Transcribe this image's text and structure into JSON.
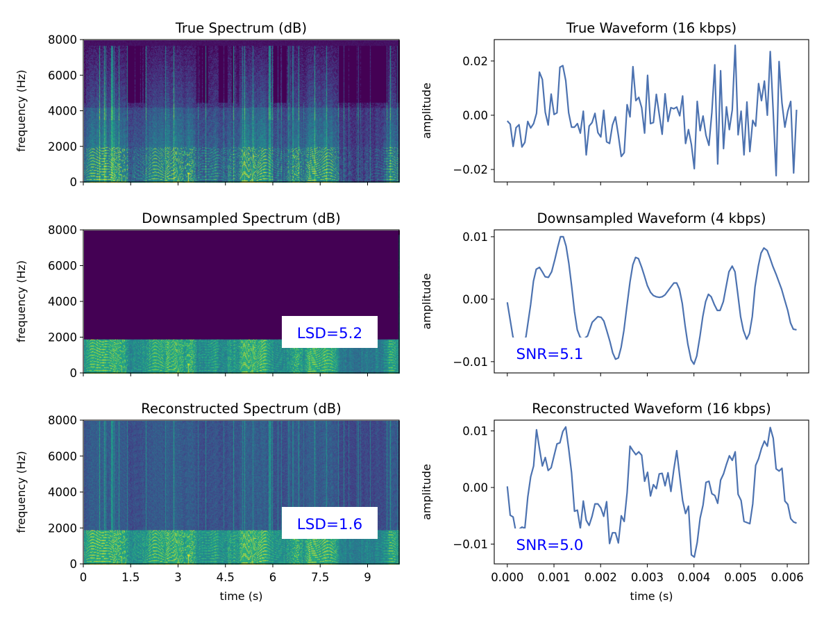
{
  "colors": {
    "line": "#4c72b0",
    "annotation": "#0000ff",
    "colormap": "viridis"
  },
  "chart_data": [
    {
      "id": "true_spec",
      "type": "heatmap",
      "title": "True Spectrum (dB)",
      "xlabel": "",
      "ylabel": "frequency (Hz)",
      "xlim": [
        0,
        10
      ],
      "ylim": [
        0,
        8000
      ],
      "xticks": [
        "0",
        "1.5",
        "3",
        "4.5",
        "6",
        "7.5",
        "9"
      ],
      "xtick_values": [
        0,
        1.5,
        3,
        4.5,
        6,
        7.5,
        9
      ],
      "show_xtick_labels": false,
      "yticks": [
        "0",
        "2000",
        "4000",
        "6000",
        "8000"
      ],
      "ytick_values": [
        0,
        2000,
        4000,
        6000,
        8000
      ],
      "content_cutoff_hz": 7700,
      "annotation": ""
    },
    {
      "id": "true_wave",
      "type": "line",
      "title": "True Waveform (16 kbps)",
      "xlabel": "",
      "ylabel": "amplitude",
      "xlim": [
        -0.00028,
        0.00646
      ],
      "ylim": [
        -0.0246,
        0.0279
      ],
      "xtick_values": [
        0,
        0.001,
        0.002,
        0.003,
        0.004,
        0.005,
        0.006
      ],
      "show_xtick_labels": false,
      "yticks": [
        "0.02",
        "0.00",
        "−0.02"
      ],
      "ytick_values": [
        0.02,
        0,
        -0.02
      ],
      "x_range": [
        0,
        0.0062
      ],
      "values": [
        -0.0021,
        -0.0033,
        -0.0115,
        -0.0046,
        -0.0035,
        -0.0117,
        -0.01,
        -0.0023,
        -0.0047,
        -0.0031,
        0.0007,
        0.0159,
        0.0132,
        0.0011,
        -0.0036,
        0.0078,
        0.0003,
        0.0009,
        0.0177,
        0.0183,
        0.0128,
        0.0009,
        -0.0044,
        -0.0044,
        -0.0031,
        -0.0066,
        0.0015,
        -0.0146,
        -0.004,
        -0.0027,
        0.0007,
        -0.0064,
        -0.008,
        0.0018,
        -0.0098,
        -0.0104,
        -0.0036,
        -0.0006,
        -0.0074,
        -0.0152,
        -0.0138,
        0.0039,
        -0.0006,
        0.0179,
        0.0054,
        0.0066,
        0.0028,
        -0.0066,
        0.0147,
        -0.0031,
        -0.0027,
        0.0077,
        0.0003,
        -0.007,
        0.0079,
        -0.0023,
        0.0028,
        0.0024,
        0.003,
        -0.0002,
        0.0071,
        -0.0104,
        -0.0053,
        -0.0108,
        -0.0197,
        0.0051,
        -0.0057,
        -0.0003,
        -0.0074,
        -0.0111,
        0.0011,
        0.0186,
        -0.018,
        0.0164,
        -0.0123,
        0.0031,
        -0.0053,
        0.002,
        0.0258,
        -0.0072,
        0.0015,
        -0.0146,
        0.0049,
        -0.0134,
        -0.0019,
        -0.004,
        0.0117,
        0.0054,
        0.0126,
        0.0,
        0.0235,
        0.0011,
        -0.0223,
        0.0198,
        0.0045,
        -0.0044,
        0.0015,
        0.0051,
        -0.0213,
        0.002
      ],
      "annotation": ""
    },
    {
      "id": "down_spec",
      "type": "heatmap",
      "title": "Downsampled Spectrum (dB)",
      "xlabel": "",
      "ylabel": "frequency (Hz)",
      "xlim": [
        0,
        10
      ],
      "ylim": [
        0,
        8000
      ],
      "xticks": [
        "0",
        "1.5",
        "3",
        "4.5",
        "6",
        "7.5",
        "9"
      ],
      "xtick_values": [
        0,
        1.5,
        3,
        4.5,
        6,
        7.5,
        9
      ],
      "show_xtick_labels": false,
      "yticks": [
        "0",
        "2000",
        "4000",
        "6000",
        "8000"
      ],
      "ytick_values": [
        0,
        2000,
        4000,
        6000,
        8000
      ],
      "content_cutoff_hz": 1900,
      "annotation": "LSD=5.2"
    },
    {
      "id": "down_wave",
      "type": "line",
      "title": "Downsampled Waveform (4 kbps)",
      "xlabel": "",
      "ylabel": "amplitude",
      "xlim": [
        -0.00028,
        0.00646
      ],
      "ylim": [
        -0.0118,
        0.0111
      ],
      "xtick_values": [
        0,
        0.001,
        0.002,
        0.003,
        0.004,
        0.005,
        0.006
      ],
      "show_xtick_labels": false,
      "yticks": [
        "0.01",
        "0.00",
        "−0.01"
      ],
      "ytick_values": [
        0.01,
        0,
        -0.01
      ],
      "x": [
        0,
        0.00012,
        0.00025,
        0.0004,
        0.0005,
        0.00056,
        0.00062,
        0.00069,
        0.00075,
        0.00081,
        0.00088,
        0.00095,
        0.00102,
        0.00108,
        0.00114,
        0.0012,
        0.00126,
        0.00132,
        0.00138,
        0.00144,
        0.0015,
        0.00156,
        0.00163,
        0.00172,
        0.00182,
        0.00194,
        0.00201,
        0.00207,
        0.00213,
        0.0022,
        0.00226,
        0.00232,
        0.00238,
        0.00244,
        0.0025,
        0.00256,
        0.00263,
        0.00269,
        0.00275,
        0.00281,
        0.00288,
        0.00294,
        0.003,
        0.00307,
        0.00313,
        0.00319,
        0.00326,
        0.00332,
        0.00338,
        0.00345,
        0.00351,
        0.00357,
        0.00363,
        0.00369,
        0.00375,
        0.00381,
        0.00387,
        0.00394,
        0.004,
        0.00406,
        0.00413,
        0.00419,
        0.00425,
        0.00431,
        0.00437,
        0.00444,
        0.0045,
        0.00456,
        0.00463,
        0.00469,
        0.00475,
        0.00482,
        0.00488,
        0.00494,
        0.005,
        0.00506,
        0.00513,
        0.00519,
        0.00525,
        0.00531,
        0.00538,
        0.00544,
        0.0055,
        0.00557,
        0.00563,
        0.00569,
        0.00576,
        0.00582,
        0.00588,
        0.00594,
        0.00601,
        0.00607,
        0.00613,
        0.0062
      ],
      "values": [
        -0.0005,
        -0.006,
        -0.0086,
        -0.006,
        -0.0009,
        0.0029,
        0.0048,
        0.0051,
        0.0044,
        0.0036,
        0.0035,
        0.0044,
        0.0064,
        0.0083,
        0.01,
        0.01,
        0.0085,
        0.0057,
        0.002,
        -0.002,
        -0.0049,
        -0.0061,
        -0.0064,
        -0.0059,
        -0.0037,
        -0.0028,
        -0.0029,
        -0.0035,
        -0.005,
        -0.0068,
        -0.0086,
        -0.0096,
        -0.0094,
        -0.0077,
        -0.005,
        -0.0013,
        0.0028,
        0.0055,
        0.0067,
        0.0065,
        0.0051,
        0.0037,
        0.0022,
        0.0011,
        0.0006,
        0.0004,
        0.0003,
        0.0004,
        0.0007,
        0.0014,
        0.002,
        0.0026,
        0.0026,
        0.0016,
        -0.0007,
        -0.0042,
        -0.0072,
        -0.0097,
        -0.0104,
        -0.0091,
        -0.0059,
        -0.0028,
        -0.0004,
        0.0008,
        0.0004,
        -0.0009,
        -0.0018,
        -0.0018,
        -0.0004,
        0.002,
        0.0044,
        0.0053,
        0.0044,
        0.0009,
        -0.0028,
        -0.005,
        -0.0064,
        -0.0055,
        -0.0028,
        0.002,
        0.0053,
        0.0074,
        0.0082,
        0.0078,
        0.0066,
        0.0053,
        0.004,
        0.0028,
        0.0016,
        0.0,
        -0.0018,
        -0.0038,
        -0.0048,
        -0.0049
      ],
      "annotation": "SNR=5.1"
    },
    {
      "id": "recon_spec",
      "type": "heatmap",
      "title": "Reconstructed Spectrum (dB)",
      "xlabel": "time (s)",
      "ylabel": "frequency (Hz)",
      "xlim": [
        0,
        10
      ],
      "ylim": [
        0,
        8000
      ],
      "xticks": [
        "0",
        "1.5",
        "3",
        "4.5",
        "6",
        "7.5",
        "9"
      ],
      "xtick_values": [
        0,
        1.5,
        3,
        4.5,
        6,
        7.5,
        9
      ],
      "show_xtick_labels": true,
      "yticks": [
        "0",
        "2000",
        "4000",
        "6000",
        "8000"
      ],
      "ytick_values": [
        0,
        2000,
        4000,
        6000,
        8000
      ],
      "content_cutoff_hz": 8000,
      "annotation": "LSD=1.6"
    },
    {
      "id": "recon_wave",
      "type": "line",
      "title": "Reconstructed Waveform (16 kbps)",
      "xlabel": "time (s)",
      "ylabel": "amplitude",
      "xlim": [
        -0.00028,
        0.00646
      ],
      "ylim": [
        -0.0135,
        0.0119
      ],
      "xticks": [
        "0.000",
        "0.001",
        "0.002",
        "0.003",
        "0.004",
        "0.005",
        "0.006"
      ],
      "xtick_values": [
        0,
        0.001,
        0.002,
        0.003,
        0.004,
        0.005,
        0.006
      ],
      "show_xtick_labels": true,
      "yticks": [
        "0.01",
        "0.00",
        "−0.01"
      ],
      "ytick_values": [
        0.01,
        0,
        -0.01
      ],
      "x_range": [
        0,
        0.0062
      ],
      "values": [
        0.0002,
        -0.0049,
        -0.0052,
        -0.008,
        -0.0074,
        -0.007,
        -0.0072,
        -0.0017,
        0.0019,
        0.0038,
        0.0102,
        0.0069,
        0.0038,
        0.0053,
        0.003,
        0.0035,
        0.0056,
        0.0077,
        0.0079,
        0.0099,
        0.0107,
        0.0069,
        0.0026,
        -0.0042,
        -0.004,
        -0.0072,
        -0.0024,
        -0.0058,
        -0.0067,
        -0.0051,
        -0.0029,
        -0.0029,
        -0.0036,
        -0.0051,
        -0.0025,
        -0.0099,
        -0.008,
        -0.008,
        -0.0098,
        -0.005,
        -0.006,
        -0.0009,
        0.0073,
        0.0065,
        0.0058,
        0.0063,
        0.0057,
        0.0011,
        0.0027,
        -0.0015,
        0.0005,
        -0.0002,
        0.0024,
        0.0025,
        0.0003,
        0.0026,
        -0.0007,
        0.0032,
        0.0065,
        0.002,
        -0.0023,
        -0.0046,
        -0.0033,
        -0.0119,
        -0.0123,
        -0.0097,
        -0.0054,
        -0.0031,
        0.0009,
        0.0011,
        -0.0011,
        -0.0014,
        -0.0028,
        0.0013,
        0.0024,
        0.0041,
        0.0056,
        0.0048,
        0.0063,
        -0.0012,
        -0.0023,
        -0.006,
        -0.0062,
        -0.0064,
        -0.0029,
        0.0039,
        0.0051,
        0.0069,
        0.0082,
        0.0073,
        0.0106,
        0.0087,
        0.0033,
        0.0029,
        0.0034,
        -0.0024,
        -0.003,
        -0.0055,
        -0.0061,
        -0.0063
      ],
      "annotation": "SNR=5.0"
    }
  ]
}
